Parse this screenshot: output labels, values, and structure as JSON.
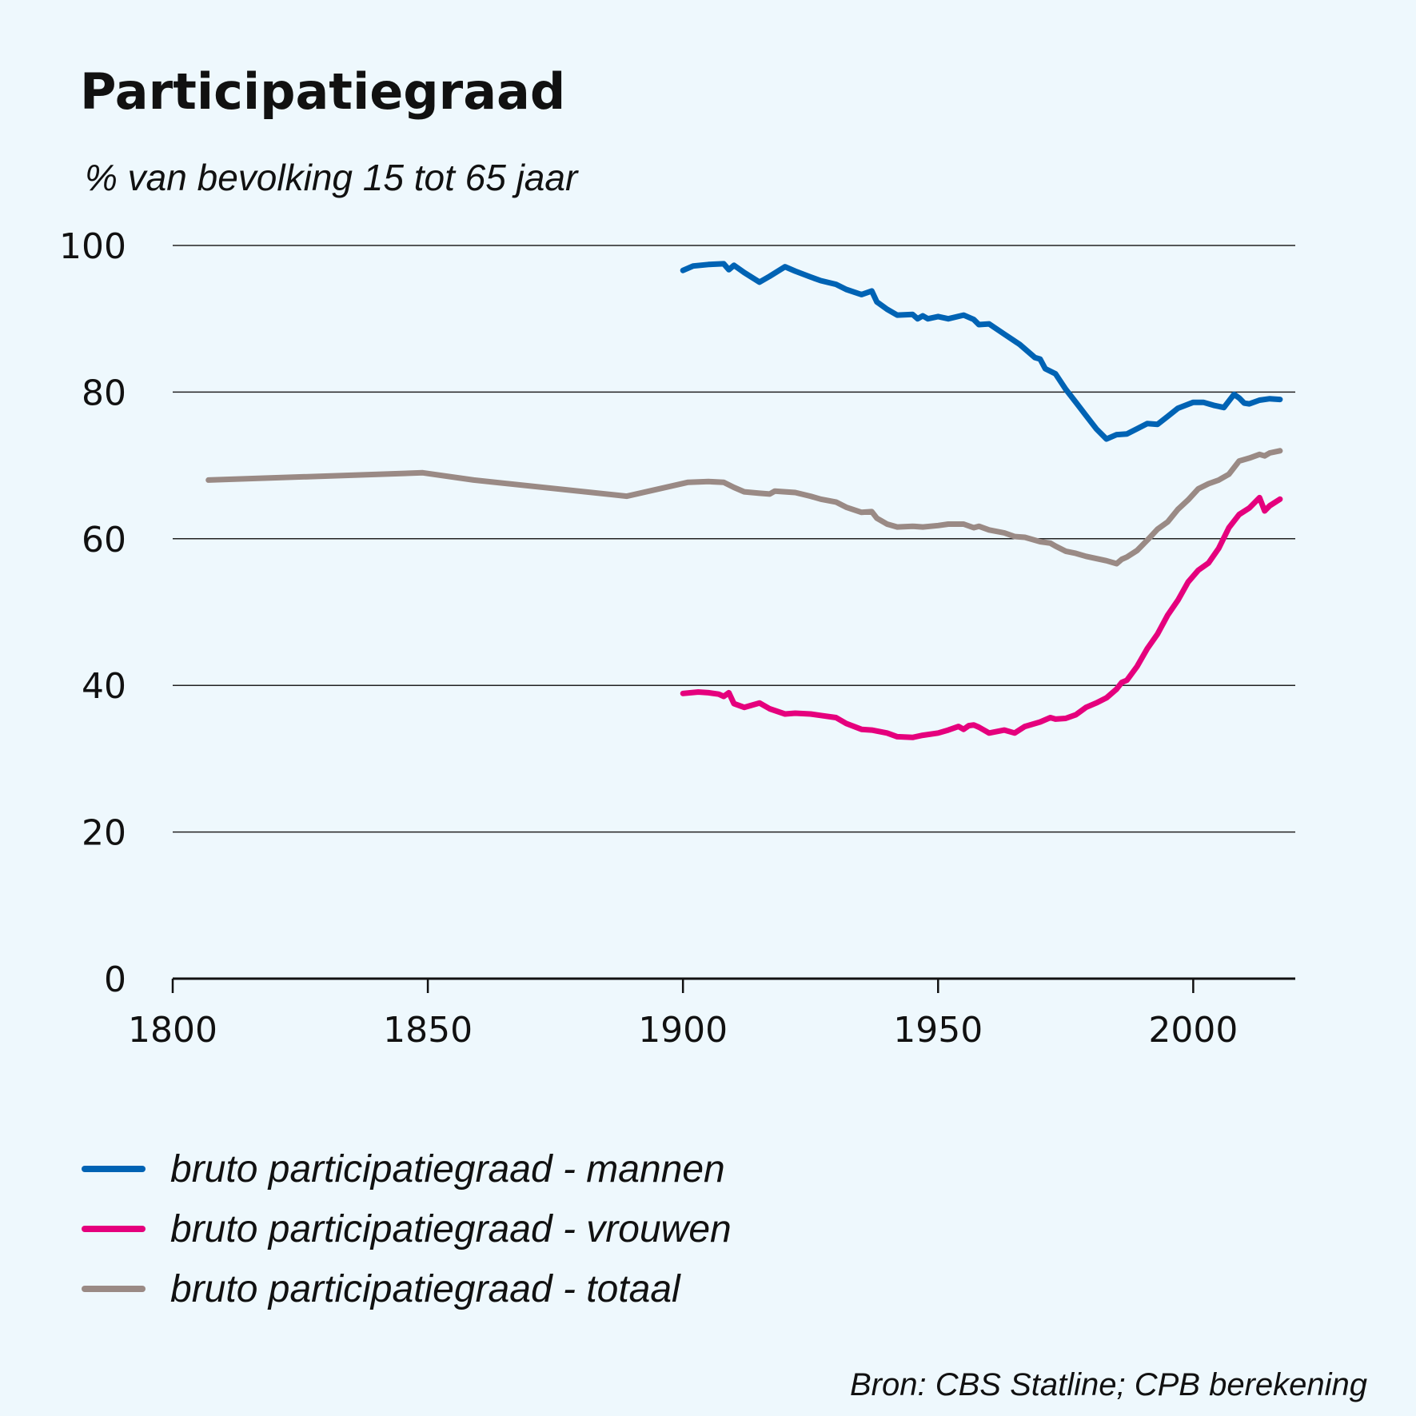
{
  "chart_data": {
    "type": "line",
    "title": "Participatiegraad",
    "subtitle": "% van bevolking 15 tot 65 jaar",
    "xlabel": "",
    "ylabel": "",
    "xlim": [
      1800,
      2020
    ],
    "ylim": [
      0,
      100
    ],
    "xticks": [
      1800,
      1850,
      1900,
      1950,
      2000
    ],
    "yticks": [
      0,
      20,
      40,
      60,
      80,
      100
    ],
    "grid": "horizontal",
    "legend_position": "bottom-left",
    "source": "Bron: CBS Statline; CPB berekening",
    "series": [
      {
        "name": "bruto participatiegraad - mannen",
        "color": "#0063b4",
        "x": [
          1900,
          1902,
          1905,
          1908,
          1909,
          1910,
          1912,
          1915,
          1917,
          1920,
          1922,
          1925,
          1927,
          1930,
          1932,
          1935,
          1937,
          1938,
          1940,
          1942,
          1945,
          1946,
          1947,
          1948,
          1950,
          1952,
          1955,
          1957,
          1958,
          1960,
          1963,
          1966,
          1969,
          1970,
          1971,
          1973,
          1975,
          1977,
          1979,
          1981,
          1983,
          1985,
          1987,
          1989,
          1991,
          1993,
          1995,
          1997,
          2000,
          2002,
          2004,
          2006,
          2008,
          2009,
          2010,
          2011,
          2013,
          2015,
          2017
        ],
        "values": [
          96.6,
          97.2,
          97.4,
          97.5,
          96.7,
          97.3,
          96.3,
          95.0,
          95.8,
          97.1,
          96.5,
          95.7,
          95.2,
          94.7,
          94.0,
          93.3,
          93.8,
          92.3,
          91.3,
          90.5,
          90.6,
          90.0,
          90.4,
          90.0,
          90.3,
          90.0,
          90.5,
          89.9,
          89.2,
          89.3,
          87.9,
          86.5,
          84.7,
          84.5,
          83.2,
          82.5,
          80.4,
          78.6,
          76.8,
          75.0,
          73.6,
          74.2,
          74.3,
          75.0,
          75.7,
          75.6,
          76.7,
          77.8,
          78.6,
          78.6,
          78.2,
          77.9,
          79.7,
          79.2,
          78.5,
          78.4,
          78.9,
          79.1,
          79.0
        ]
      },
      {
        "name": "bruto participatiegraad - vrouwen",
        "color": "#e5007d",
        "x": [
          1900,
          1903,
          1905,
          1907,
          1908,
          1909,
          1910,
          1912,
          1915,
          1917,
          1920,
          1922,
          1925,
          1927,
          1930,
          1932,
          1935,
          1937,
          1940,
          1942,
          1945,
          1947,
          1950,
          1952,
          1954,
          1955,
          1956,
          1957,
          1958,
          1960,
          1963,
          1965,
          1967,
          1970,
          1972,
          1973,
          1975,
          1977,
          1979,
          1981,
          1983,
          1985,
          1986,
          1987,
          1989,
          1991,
          1993,
          1995,
          1997,
          1999,
          2001,
          2003,
          2005,
          2007,
          2009,
          2011,
          2013,
          2014,
          2015,
          2017
        ],
        "values": [
          38.9,
          39.1,
          39.0,
          38.8,
          38.5,
          39.0,
          37.5,
          37.0,
          37.6,
          36.8,
          36.1,
          36.2,
          36.1,
          35.9,
          35.6,
          34.8,
          34.0,
          33.9,
          33.5,
          33.0,
          32.9,
          33.2,
          33.5,
          33.9,
          34.4,
          34.0,
          34.5,
          34.6,
          34.3,
          33.5,
          33.9,
          33.5,
          34.4,
          35.0,
          35.6,
          35.4,
          35.5,
          36.0,
          37.0,
          37.6,
          38.3,
          39.5,
          40.4,
          40.7,
          42.6,
          45.0,
          47.0,
          49.6,
          51.6,
          54.1,
          55.7,
          56.7,
          58.7,
          61.5,
          63.3,
          64.2,
          65.6,
          63.8,
          64.5,
          65.4
        ]
      },
      {
        "name": "bruto participatiegraad - totaal",
        "color": "#9a8a85",
        "x": [
          1807,
          1849,
          1859,
          1889,
          1901,
          1905,
          1908,
          1910,
          1912,
          1915,
          1917,
          1918,
          1920,
          1922,
          1925,
          1927,
          1930,
          1932,
          1935,
          1937,
          1938,
          1940,
          1942,
          1945,
          1947,
          1950,
          1952,
          1955,
          1957,
          1958,
          1960,
          1963,
          1965,
          1967,
          1970,
          1972,
          1973,
          1975,
          1977,
          1979,
          1981,
          1983,
          1985,
          1986,
          1987,
          1989,
          1991,
          1993,
          1995,
          1997,
          1999,
          2001,
          2003,
          2005,
          2007,
          2009,
          2011,
          2013,
          2014,
          2015,
          2017
        ],
        "values": [
          68.0,
          69.0,
          68.0,
          65.8,
          67.7,
          67.8,
          67.7,
          67.0,
          66.4,
          66.2,
          66.1,
          66.5,
          66.4,
          66.3,
          65.8,
          65.4,
          65.0,
          64.3,
          63.6,
          63.7,
          62.8,
          62.0,
          61.6,
          61.7,
          61.6,
          61.8,
          62.0,
          62.0,
          61.5,
          61.7,
          61.2,
          60.8,
          60.3,
          60.2,
          59.6,
          59.4,
          59.0,
          58.3,
          58.0,
          57.6,
          57.3,
          57.0,
          56.6,
          57.2,
          57.5,
          58.4,
          59.8,
          61.3,
          62.3,
          64.0,
          65.3,
          66.8,
          67.5,
          68.0,
          68.8,
          70.6,
          71.0,
          71.5,
          71.3,
          71.7,
          72.0
        ]
      }
    ]
  }
}
